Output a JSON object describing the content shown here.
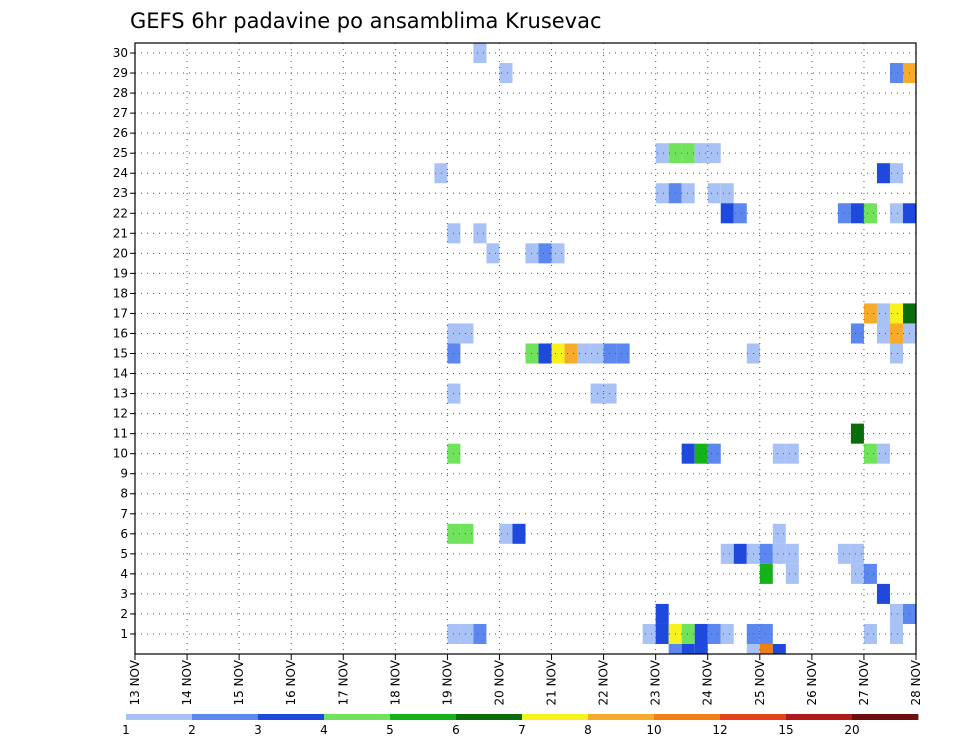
{
  "chart_data": {
    "type": "heatmap",
    "title": "GEFS 6hr padavine po ansamblima Krusevac",
    "xlabel": "",
    "ylabel": "",
    "x_tick_labels": [
      "13 NOV",
      "14 NOV",
      "15 NOV",
      "16 NOV",
      "17 NOV",
      "18 NOV",
      "19 NOV",
      "20 NOV",
      "21 NOV",
      "22 NOV",
      "23 NOV",
      "24 NOV",
      "25 NOV",
      "26 NOV",
      "27 NOV",
      "28 NOV"
    ],
    "y_tick_labels": [
      "1",
      "2",
      "3",
      "4",
      "5",
      "6",
      "7",
      "8",
      "9",
      "10",
      "11",
      "12",
      "13",
      "14",
      "15",
      "16",
      "17",
      "18",
      "19",
      "20",
      "21",
      "22",
      "23",
      "24",
      "25",
      "26",
      "27",
      "28",
      "29",
      "30"
    ],
    "x_unit": "days from 13 NOV",
    "x_range": [
      0,
      15
    ],
    "y_range": [
      0,
      30.5
    ],
    "cell_width_days": 0.25,
    "grid": true,
    "colorbar": {
      "placement": "bottom",
      "labels": [
        "1",
        "2",
        "3",
        "4",
        "5",
        "6",
        "7",
        "8",
        "10",
        "12",
        "15",
        "20"
      ],
      "colors": [
        "#a9c2f5",
        "#5b87ee",
        "#1f49dd",
        "#70e25c",
        "#16b21a",
        "#0a6c0a",
        "#f6f21d",
        "#f7ab2b",
        "#f27f14",
        "#e5431a",
        "#b01a1a",
        "#6e0e0e"
      ]
    },
    "cells": [
      {
        "x": 6.5,
        "y": 30,
        "c": 1
      },
      {
        "x": 7,
        "y": 29,
        "c": 1
      },
      {
        "x": 14.5,
        "y": 29,
        "c": 2
      },
      {
        "x": 14.75,
        "y": 29,
        "c": 8
      },
      {
        "x": 10,
        "y": 25,
        "c": 1
      },
      {
        "x": 10.25,
        "y": 25,
        "c": 4
      },
      {
        "x": 10.5,
        "y": 25,
        "c": 4
      },
      {
        "x": 10.75,
        "y": 25,
        "c": 1
      },
      {
        "x": 11,
        "y": 25,
        "c": 1
      },
      {
        "x": 5.75,
        "y": 24,
        "c": 1
      },
      {
        "x": 14.25,
        "y": 24,
        "c": 3
      },
      {
        "x": 14.5,
        "y": 24,
        "c": 1
      },
      {
        "x": 10,
        "y": 23,
        "c": 1
      },
      {
        "x": 10.25,
        "y": 23,
        "c": 2
      },
      {
        "x": 10.5,
        "y": 23,
        "c": 1
      },
      {
        "x": 11,
        "y": 23,
        "c": 1
      },
      {
        "x": 11.25,
        "y": 23,
        "c": 1
      },
      {
        "x": 11.25,
        "y": 22,
        "c": 3
      },
      {
        "x": 11.5,
        "y": 22,
        "c": 2
      },
      {
        "x": 13.5,
        "y": 22,
        "c": 2
      },
      {
        "x": 13.75,
        "y": 22,
        "c": 3
      },
      {
        "x": 14,
        "y": 22,
        "c": 4
      },
      {
        "x": 14.5,
        "y": 22,
        "c": 1
      },
      {
        "x": 14.75,
        "y": 22,
        "c": 3
      },
      {
        "x": 6,
        "y": 21,
        "c": 1
      },
      {
        "x": 6.5,
        "y": 21,
        "c": 1
      },
      {
        "x": 6.75,
        "y": 20,
        "c": 1
      },
      {
        "x": 7.5,
        "y": 20,
        "c": 1
      },
      {
        "x": 7.75,
        "y": 20,
        "c": 2
      },
      {
        "x": 8,
        "y": 20,
        "c": 1
      },
      {
        "x": 14,
        "y": 17,
        "c": 8
      },
      {
        "x": 14.25,
        "y": 17,
        "c": 1
      },
      {
        "x": 14.5,
        "y": 17,
        "c": 7
      },
      {
        "x": 14.75,
        "y": 17,
        "c": 6
      },
      {
        "x": 6,
        "y": 16,
        "c": 1
      },
      {
        "x": 6.25,
        "y": 16,
        "c": 1
      },
      {
        "x": 13.75,
        "y": 16,
        "c": 2
      },
      {
        "x": 14.25,
        "y": 16,
        "c": 1
      },
      {
        "x": 14.5,
        "y": 16,
        "c": 8
      },
      {
        "x": 14.75,
        "y": 16,
        "c": 1
      },
      {
        "x": 6,
        "y": 15,
        "c": 2
      },
      {
        "x": 7.5,
        "y": 15,
        "c": 4
      },
      {
        "x": 7.75,
        "y": 15,
        "c": 3
      },
      {
        "x": 8,
        "y": 15,
        "c": 7
      },
      {
        "x": 8.25,
        "y": 15,
        "c": 8
      },
      {
        "x": 8.5,
        "y": 15,
        "c": 1
      },
      {
        "x": 8.75,
        "y": 15,
        "c": 1
      },
      {
        "x": 9,
        "y": 15,
        "c": 2
      },
      {
        "x": 9.25,
        "y": 15,
        "c": 2
      },
      {
        "x": 11.75,
        "y": 15,
        "c": 1
      },
      {
        "x": 14.5,
        "y": 15,
        "c": 1
      },
      {
        "x": 6,
        "y": 13,
        "c": 1
      },
      {
        "x": 8.75,
        "y": 13,
        "c": 1
      },
      {
        "x": 9,
        "y": 13,
        "c": 1
      },
      {
        "x": 13.75,
        "y": 11,
        "c": 6
      },
      {
        "x": 6,
        "y": 10,
        "c": 4
      },
      {
        "x": 10.5,
        "y": 10,
        "c": 3
      },
      {
        "x": 10.75,
        "y": 10,
        "c": 5
      },
      {
        "x": 11,
        "y": 10,
        "c": 2
      },
      {
        "x": 12.25,
        "y": 10,
        "c": 1
      },
      {
        "x": 12.5,
        "y": 10,
        "c": 1
      },
      {
        "x": 14,
        "y": 10,
        "c": 4
      },
      {
        "x": 14.25,
        "y": 10,
        "c": 1
      },
      {
        "x": 6,
        "y": 6,
        "c": 4
      },
      {
        "x": 6.25,
        "y": 6,
        "c": 4
      },
      {
        "x": 7,
        "y": 6,
        "c": 1
      },
      {
        "x": 7.25,
        "y": 6,
        "c": 3
      },
      {
        "x": 12.25,
        "y": 6,
        "c": 1
      },
      {
        "x": 11.25,
        "y": 5,
        "c": 1
      },
      {
        "x": 11.5,
        "y": 5,
        "c": 3
      },
      {
        "x": 11.75,
        "y": 5,
        "c": 1
      },
      {
        "x": 12,
        "y": 5,
        "c": 2
      },
      {
        "x": 12.25,
        "y": 5,
        "c": 1
      },
      {
        "x": 12.5,
        "y": 5,
        "c": 1
      },
      {
        "x": 13.5,
        "y": 5,
        "c": 1
      },
      {
        "x": 13.75,
        "y": 5,
        "c": 1
      },
      {
        "x": 12,
        "y": 4,
        "c": 5
      },
      {
        "x": 12.5,
        "y": 4,
        "c": 1
      },
      {
        "x": 13.75,
        "y": 4,
        "c": 1
      },
      {
        "x": 14,
        "y": 4,
        "c": 2
      },
      {
        "x": 14.25,
        "y": 3,
        "c": 3
      },
      {
        "x": 10,
        "y": 2,
        "c": 3
      },
      {
        "x": 14.5,
        "y": 2,
        "c": 1
      },
      {
        "x": 14.75,
        "y": 2,
        "c": 2
      },
      {
        "x": 6,
        "y": 1,
        "c": 1
      },
      {
        "x": 6.25,
        "y": 1,
        "c": 1
      },
      {
        "x": 6.5,
        "y": 1,
        "c": 2
      },
      {
        "x": 9.75,
        "y": 1,
        "c": 1
      },
      {
        "x": 10,
        "y": 1,
        "c": 3
      },
      {
        "x": 10.25,
        "y": 1,
        "c": 7
      },
      {
        "x": 10.5,
        "y": 1,
        "c": 4
      },
      {
        "x": 10.75,
        "y": 1,
        "c": 3
      },
      {
        "x": 11,
        "y": 1,
        "c": 2
      },
      {
        "x": 11.25,
        "y": 1,
        "c": 1
      },
      {
        "x": 11.75,
        "y": 1,
        "c": 2
      },
      {
        "x": 12,
        "y": 1,
        "c": 2
      },
      {
        "x": 14,
        "y": 1,
        "c": 1
      },
      {
        "x": 14.5,
        "y": 1,
        "c": 1
      },
      {
        "x": 10.25,
        "y": 0,
        "c": 2
      },
      {
        "x": 10.5,
        "y": 0,
        "c": 3
      },
      {
        "x": 10.75,
        "y": 0,
        "c": 3
      },
      {
        "x": 11.75,
        "y": 0,
        "c": 1
      },
      {
        "x": 12,
        "y": 0,
        "c": 9
      },
      {
        "x": 12.25,
        "y": 0,
        "c": 3
      }
    ]
  }
}
